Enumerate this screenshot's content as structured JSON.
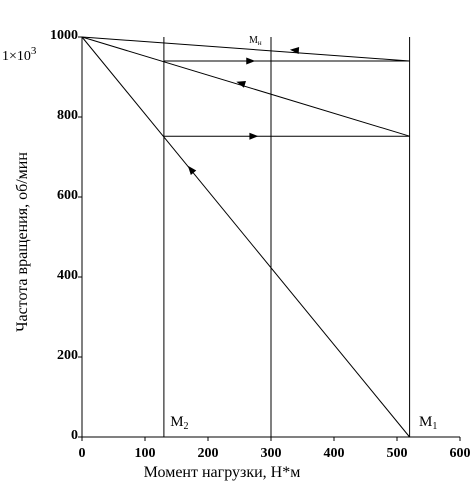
{
  "chart_data": {
    "type": "line",
    "xlabel": "Момент нагрузки, Н*м",
    "ylabel": "Частота вращения, об/мин",
    "xlim": [
      0,
      600
    ],
    "ylim": [
      0,
      1000
    ],
    "x_ticks": [
      0,
      100,
      200,
      300,
      400,
      500,
      600
    ],
    "x_tick_labels": [
      "0",
      "100",
      "200",
      "300",
      "400",
      "500",
      "600"
    ],
    "y_ticks": [
      0,
      200,
      400,
      600,
      800,
      1000
    ],
    "y_tick_labels": [
      "0",
      "200",
      "400",
      "600",
      "800",
      "1000"
    ],
    "y_multiplier": "1×10",
    "y_multiplier_exp": "3",
    "grid": false,
    "lines": [
      {
        "x": [
          0,
          520
        ],
        "y": [
          1000,
          0
        ]
      },
      {
        "x": [
          0,
          520
        ],
        "y": [
          1000,
          752
        ]
      },
      {
        "x": [
          0,
          520
        ],
        "y": [
          1000,
          940
        ]
      }
    ],
    "horizontal_segments": [
      {
        "x": [
          130,
          520
        ],
        "y": 940,
        "arrow_dir": "right",
        "arrow_x": 275
      },
      {
        "x": [
          130,
          520
        ],
        "y": 752,
        "arrow_dir": "right",
        "arrow_x": 280
      }
    ],
    "direction_arrows": [
      {
        "x": 330,
        "y": 968,
        "dir": "left",
        "line": 2
      },
      {
        "x": 245,
        "y": 888,
        "dir": "up-left",
        "line": 1
      },
      {
        "x": 168,
        "y": 678,
        "dir": "up-left",
        "line": 0
      }
    ],
    "vertical_lines": [
      130,
      300,
      520
    ],
    "annotations": [
      {
        "text": "M",
        "sub": "н",
        "x": 265,
        "y": 985,
        "size": "small"
      },
      {
        "text": "M",
        "sub": "2",
        "x": 140,
        "y": 28,
        "size": "large"
      },
      {
        "text": "M",
        "sub": "1",
        "x": 535,
        "y": 28,
        "size": "large"
      }
    ]
  }
}
